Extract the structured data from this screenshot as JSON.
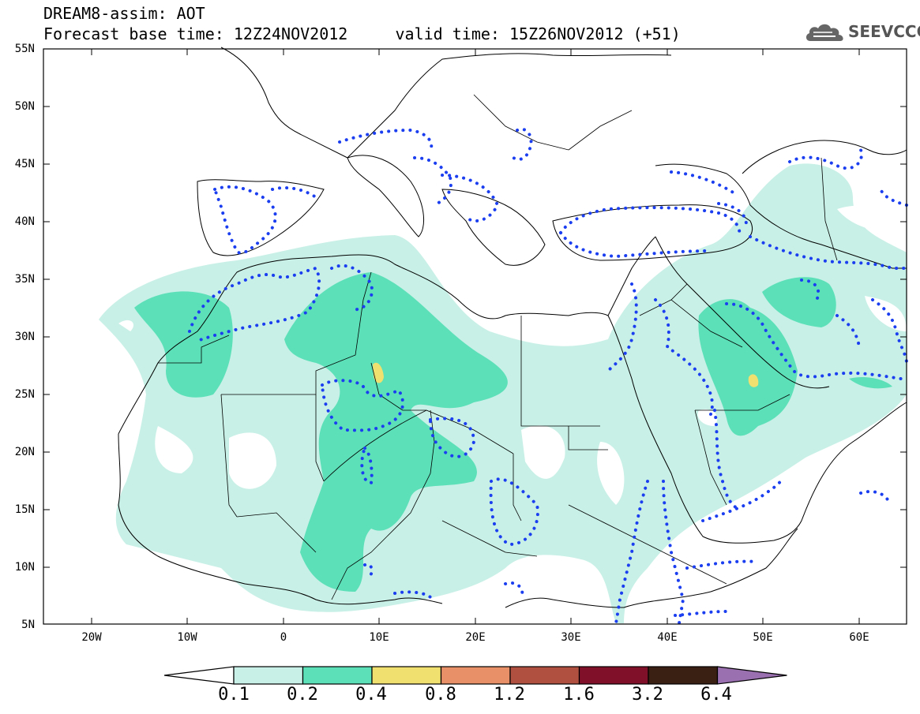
{
  "header": {
    "line1": "DREAM8-assim: AOT",
    "line2": "Forecast base time: 12Z24NOV2012     valid time: 15Z26NOV2012 (+51)"
  },
  "logo": {
    "text": "SEEVCCC",
    "icon": "cloud-icon"
  },
  "map": {
    "lat_labels": [
      "55N",
      "50N",
      "45N",
      "40N",
      "35N",
      "30N",
      "25N",
      "20N",
      "15N",
      "10N",
      "5N"
    ],
    "lon_labels": [
      "20W",
      "10W",
      "0",
      "10E",
      "20E",
      "30E",
      "40E",
      "50E",
      "60E"
    ],
    "lat_range": [
      5,
      55
    ],
    "lon_range": [
      -25,
      65
    ]
  },
  "colorbar": {
    "labels": [
      "0.1",
      "0.2",
      "0.4",
      "0.8",
      "1.2",
      "1.6",
      "3.2",
      "6.4"
    ],
    "colors": [
      "#c8f0e6",
      "#5ce0b8",
      "#f0e070",
      "#e89068",
      "#b05040",
      "#80102a",
      "#3a2012",
      "#9a70b0"
    ],
    "under_color": "#ffffff"
  }
}
